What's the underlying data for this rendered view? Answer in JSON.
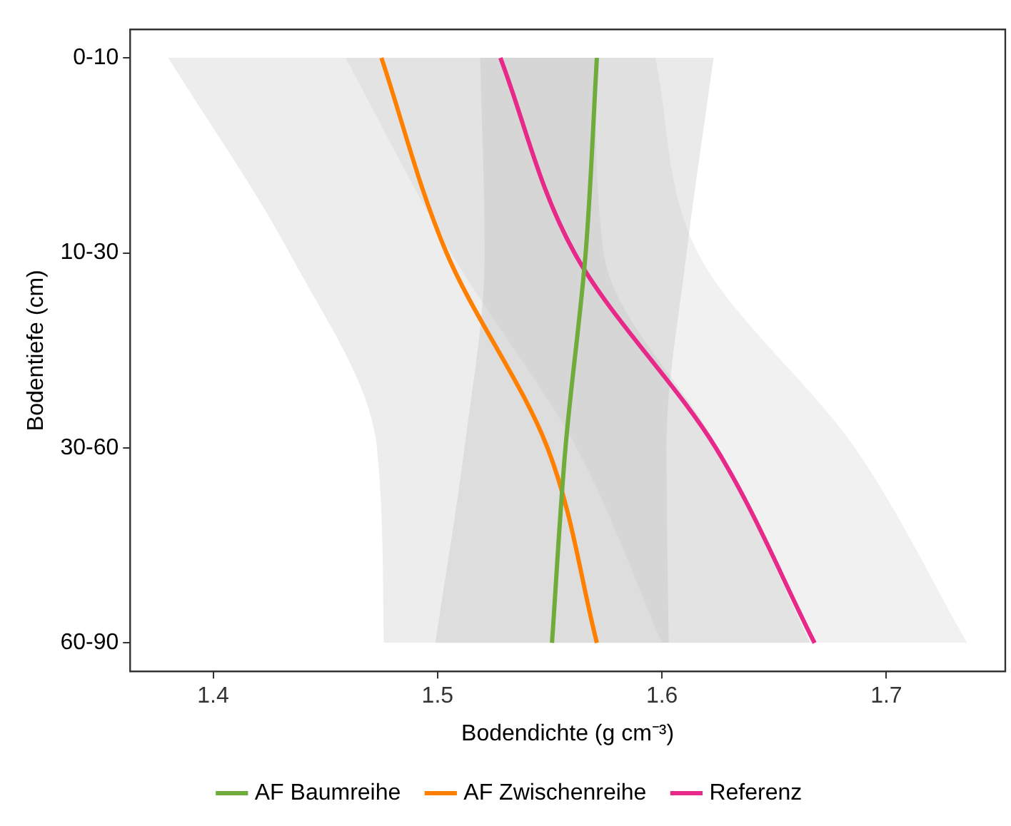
{
  "chart_data": {
    "type": "line",
    "orientation": "horizontal",
    "xlabel": "Bodendichte (g cm⁻³)",
    "ylabel": "Bodentiefe (cm)",
    "categories": [
      "0-10",
      "10-30",
      "30-60",
      "60-90"
    ],
    "xlim": [
      1.363,
      1.753
    ],
    "xticks": [
      1.4,
      1.5,
      1.6,
      1.7
    ],
    "grid": false,
    "legend": "bottom",
    "marker": "none",
    "line_style": "solid",
    "series": [
      {
        "name": "AF Baumreihe",
        "color": "#6fac3b",
        "values": [
          1.571,
          1.566,
          1.557,
          1.551
        ],
        "lower": [
          1.519,
          1.521,
          1.512,
          1.499
        ],
        "upper": [
          1.623,
          1.611,
          1.602,
          1.603
        ]
      },
      {
        "name": "AF Zwischenreihe",
        "color": "#ff7f00",
        "values": [
          1.475,
          1.504,
          1.549,
          1.571
        ],
        "lower": [
          1.38,
          1.434,
          1.473,
          1.476
        ],
        "upper": [
          1.57,
          1.574,
          1.625,
          1.666
        ]
      },
      {
        "name": "Referenz",
        "color": "#e7298a",
        "values": [
          1.528,
          1.561,
          1.624,
          1.668
        ],
        "lower": [
          1.459,
          1.506,
          1.562,
          1.6
        ],
        "upper": [
          1.597,
          1.616,
          1.686,
          1.736
        ]
      }
    ]
  }
}
